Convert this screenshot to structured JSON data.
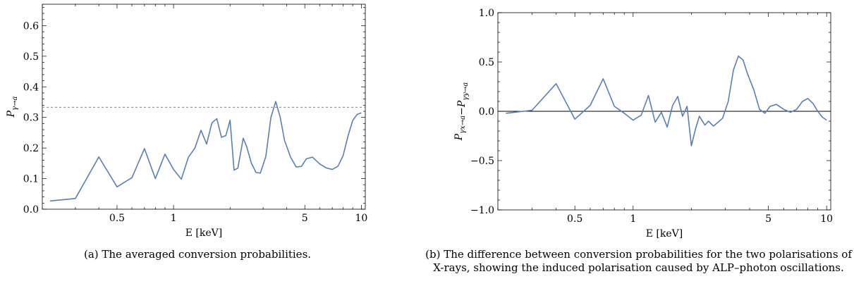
{
  "figures": [
    {
      "caption": "(a) The averaged conversion probabilities.",
      "chart_data": {
        "type": "line",
        "xlabel": "E [keV]",
        "ylabel": "P_{γ→a}",
        "xscale": "log",
        "xlim": [
          0.2,
          10.5
        ],
        "ylim": [
          0.0,
          0.67
        ],
        "xticks": [
          0.5,
          1,
          5,
          10
        ],
        "xtick_labels": [
          "0.5",
          "1",
          "5",
          "10"
        ],
        "yticks": [
          0.0,
          0.1,
          0.2,
          0.3,
          0.4,
          0.5,
          0.6
        ],
        "ytick_labels": [
          "0.0",
          "0.1",
          "0.2",
          "0.3",
          "0.4",
          "0.5",
          "0.6"
        ],
        "reference_line": {
          "y": 0.333,
          "style": "dashed",
          "color": "#999999"
        },
        "grid": false,
        "series": [
          {
            "color": "#5b7fb5",
            "x": [
              0.22,
              0.3,
              0.4,
              0.5,
              0.6,
              0.7,
              0.8,
              0.9,
              1.0,
              1.1,
              1.2,
              1.3,
              1.4,
              1.5,
              1.6,
              1.7,
              1.8,
              1.9,
              2.0,
              2.1,
              2.2,
              2.35,
              2.45,
              2.6,
              2.75,
              2.9,
              3.1,
              3.3,
              3.5,
              3.7,
              3.9,
              4.2,
              4.5,
              4.8,
              5.1,
              5.5,
              6.0,
              6.5,
              7.0,
              7.5,
              8.0,
              8.5,
              9.0,
              9.5,
              10.0
            ],
            "y": [
              0.027,
              0.035,
              0.171,
              0.073,
              0.103,
              0.198,
              0.1,
              0.18,
              0.13,
              0.098,
              0.17,
              0.2,
              0.258,
              0.213,
              0.282,
              0.296,
              0.235,
              0.241,
              0.291,
              0.128,
              0.134,
              0.232,
              0.205,
              0.15,
              0.12,
              0.118,
              0.172,
              0.3,
              0.352,
              0.3,
              0.225,
              0.17,
              0.138,
              0.14,
              0.165,
              0.17,
              0.148,
              0.135,
              0.13,
              0.14,
              0.175,
              0.24,
              0.29,
              0.31,
              0.315
            ]
          }
        ]
      }
    },
    {
      "caption": "(b) The difference between conversion probabilities for the two polarisations of X-rays, showing the induced polarisation caused by ALP–photon oscillations.",
      "chart_data": {
        "type": "line",
        "xlabel": "E [keV]",
        "ylabel": "P_{γx→a}−P_{γy→a}",
        "xscale": "log",
        "xlim": [
          0.2,
          10.5
        ],
        "ylim": [
          -1.0,
          1.0
        ],
        "xticks": [
          0.5,
          1,
          5,
          10
        ],
        "xtick_labels": [
          "0.5",
          "1",
          "5",
          "10"
        ],
        "yticks": [
          -1.0,
          -0.5,
          0.0,
          0.5,
          1.0
        ],
        "ytick_labels": [
          "−1.0",
          "−0.5",
          "0.0",
          "0.5",
          "1.0"
        ],
        "reference_line": {
          "y": 0.0,
          "style": "solid",
          "color": "#000000"
        },
        "grid": false,
        "series": [
          {
            "color": "#5b7fb5",
            "x": [
              0.22,
              0.3,
              0.4,
              0.5,
              0.6,
              0.7,
              0.8,
              0.9,
              1.0,
              1.1,
              1.2,
              1.3,
              1.4,
              1.5,
              1.6,
              1.7,
              1.8,
              1.9,
              2.0,
              2.1,
              2.2,
              2.35,
              2.45,
              2.6,
              2.75,
              2.9,
              3.1,
              3.3,
              3.5,
              3.7,
              3.9,
              4.2,
              4.5,
              4.8,
              5.1,
              5.5,
              6.0,
              6.5,
              7.0,
              7.5,
              8.0,
              8.5,
              9.0,
              9.5,
              10.0
            ],
            "y": [
              -0.02,
              0.01,
              0.28,
              -0.08,
              0.06,
              0.33,
              0.05,
              -0.02,
              -0.09,
              -0.04,
              0.16,
              -0.11,
              -0.01,
              -0.16,
              0.06,
              0.15,
              -0.05,
              0.05,
              -0.35,
              -0.18,
              -0.05,
              -0.14,
              -0.1,
              -0.15,
              -0.11,
              -0.07,
              0.1,
              0.42,
              0.56,
              0.52,
              0.38,
              0.22,
              0.02,
              -0.02,
              0.05,
              0.07,
              0.02,
              -0.01,
              0.02,
              0.1,
              0.13,
              0.08,
              0.0,
              -0.06,
              -0.09
            ]
          }
        ]
      }
    }
  ]
}
